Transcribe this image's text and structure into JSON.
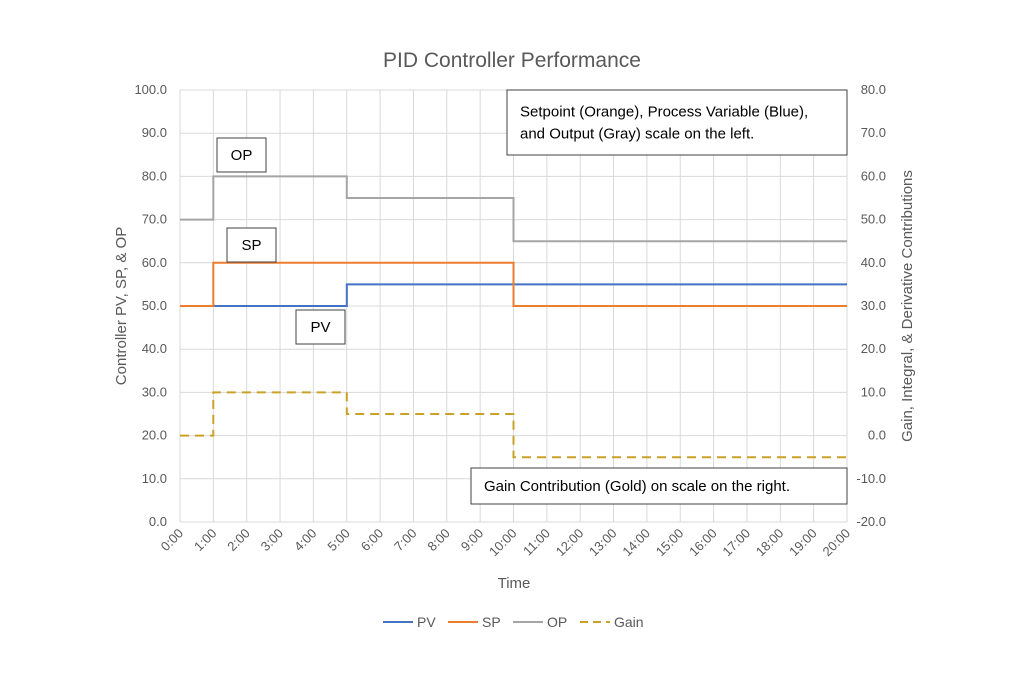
{
  "chart_data": {
    "type": "line",
    "title": "PID Controller Performance",
    "xlabel": "Time",
    "ylabel": "Controller PV, SP, & OP",
    "y2label": "Gain, Integral, & Derivative Contributions",
    "categories": [
      "0:00",
      "1:00",
      "2:00",
      "3:00",
      "4:00",
      "5:00",
      "6:00",
      "7:00",
      "8:00",
      "9:00",
      "10:00",
      "11:00",
      "12:00",
      "13:00",
      "14:00",
      "15:00",
      "16:00",
      "17:00",
      "18:00",
      "19:00",
      "20:00"
    ],
    "xlim": [
      0,
      20
    ],
    "ylim": [
      0,
      100
    ],
    "y2lim": [
      -20,
      80
    ],
    "yticks": [
      "0.0",
      "10.0",
      "20.0",
      "30.0",
      "40.0",
      "50.0",
      "60.0",
      "70.0",
      "80.0",
      "90.0",
      "100.0"
    ],
    "y2ticks": [
      "-20.0",
      "-10.0",
      "0.0",
      "10.0",
      "20.0",
      "30.0",
      "40.0",
      "50.0",
      "60.0",
      "70.0",
      "80.0"
    ],
    "grid": true,
    "legend_position": "bottom",
    "series": [
      {
        "name": "PV",
        "axis": "left",
        "color": "#4472C4",
        "dash": "solid",
        "points": [
          [
            0,
            50
          ],
          [
            5,
            50
          ],
          [
            5,
            55
          ],
          [
            20,
            55
          ]
        ]
      },
      {
        "name": "SP",
        "axis": "left",
        "color": "#ED7D31",
        "dash": "solid",
        "points": [
          [
            0,
            50
          ],
          [
            1,
            50
          ],
          [
            1,
            60
          ],
          [
            10,
            60
          ],
          [
            10,
            50
          ],
          [
            20,
            50
          ]
        ]
      },
      {
        "name": "OP",
        "axis": "left",
        "color": "#A5A5A5",
        "dash": "solid",
        "points": [
          [
            0,
            70
          ],
          [
            1,
            70
          ],
          [
            1,
            80
          ],
          [
            5,
            80
          ],
          [
            5,
            75
          ],
          [
            10,
            75
          ],
          [
            10,
            65
          ],
          [
            20,
            65
          ]
        ]
      },
      {
        "name": "Gain",
        "axis": "right",
        "color": "#C9A227",
        "dash": "dashed",
        "points": [
          [
            0,
            0
          ],
          [
            1,
            0
          ],
          [
            1,
            10
          ],
          [
            5,
            10
          ],
          [
            5,
            5
          ],
          [
            10,
            5
          ],
          [
            10,
            -5
          ],
          [
            20,
            -5
          ]
        ]
      }
    ],
    "annotations": [
      {
        "id": "op",
        "lines": [
          "OP"
        ]
      },
      {
        "id": "sp",
        "lines": [
          "SP"
        ]
      },
      {
        "id": "pv",
        "lines": [
          "PV"
        ]
      },
      {
        "id": "left-scale-note",
        "lines": [
          "Setpoint (Orange), Process Variable (Blue),",
          "and Output (Gray) scale on the left."
        ]
      },
      {
        "id": "right-scale-note",
        "lines": [
          "Gain Contribution (Gold) on scale on the right."
        ]
      }
    ]
  }
}
